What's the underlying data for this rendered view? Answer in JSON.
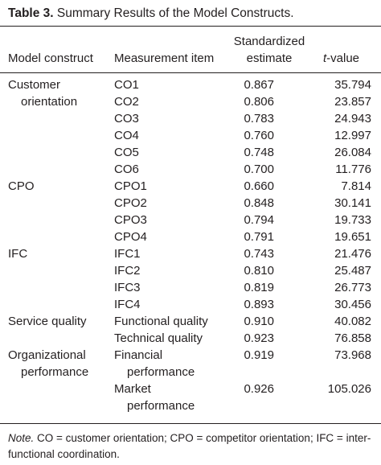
{
  "caption": {
    "label": "Table 3.",
    "title": "Summary Results of the Model Constructs."
  },
  "header": {
    "col1": "Model construct",
    "col2": "Measurement item",
    "col3_line1": "Standardized",
    "col3_line2": "estimate",
    "col4_italic": "t",
    "col4_rest": "-value"
  },
  "groups": [
    {
      "construct": [
        "Customer",
        "orientation"
      ],
      "rows": [
        {
          "item": [
            "CO1"
          ],
          "estimate": "0.867",
          "t": "35.794"
        },
        {
          "item": [
            "CO2"
          ],
          "estimate": "0.806",
          "t": "23.857"
        },
        {
          "item": [
            "CO3"
          ],
          "estimate": "0.783",
          "t": "24.943"
        },
        {
          "item": [
            "CO4"
          ],
          "estimate": "0.760",
          "t": "12.997"
        },
        {
          "item": [
            "CO5"
          ],
          "estimate": "0.748",
          "t": "26.084"
        },
        {
          "item": [
            "CO6"
          ],
          "estimate": "0.700",
          "t": "11.776"
        }
      ]
    },
    {
      "construct": [
        "CPO"
      ],
      "rows": [
        {
          "item": [
            "CPO1"
          ],
          "estimate": "0.660",
          "t": "7.814"
        },
        {
          "item": [
            "CPO2"
          ],
          "estimate": "0.848",
          "t": "30.141"
        },
        {
          "item": [
            "CPO3"
          ],
          "estimate": "0.794",
          "t": "19.733"
        },
        {
          "item": [
            "CPO4"
          ],
          "estimate": "0.791",
          "t": "19.651"
        }
      ]
    },
    {
      "construct": [
        "IFC"
      ],
      "rows": [
        {
          "item": [
            "IFC1"
          ],
          "estimate": "0.743",
          "t": "21.476"
        },
        {
          "item": [
            "IFC2"
          ],
          "estimate": "0.810",
          "t": "25.487"
        },
        {
          "item": [
            "IFC3"
          ],
          "estimate": "0.819",
          "t": "26.773"
        },
        {
          "item": [
            "IFC4"
          ],
          "estimate": "0.893",
          "t": "30.456"
        }
      ]
    },
    {
      "construct": [
        "Service quality"
      ],
      "rows": [
        {
          "item": [
            "Functional quality"
          ],
          "estimate": "0.910",
          "t": "40.082"
        },
        {
          "item": [
            "Technical quality"
          ],
          "estimate": "0.923",
          "t": "76.858"
        }
      ]
    },
    {
      "construct": [
        "Organizational",
        "performance"
      ],
      "rows": [
        {
          "item": [
            "Financial",
            "performance"
          ],
          "estimate": "0.919",
          "t": "73.968"
        },
        {
          "item": [
            "Market",
            "performance"
          ],
          "estimate": "0.926",
          "t": "105.026"
        }
      ]
    }
  ],
  "note": {
    "label": "Note.",
    "text": " CO = customer orientation; CPO = competitor orientation; IFC = inter-functional coordination."
  }
}
